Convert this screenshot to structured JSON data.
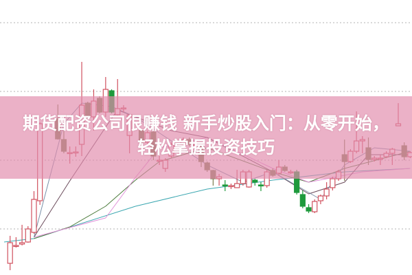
{
  "headline": {
    "line1": "期货配资公司很赚钱 新手炒股入门：从零开始，",
    "line2": "轻松掌握投资技巧"
  },
  "colors": {
    "up": "#d0505e",
    "down": "#7d7d4e",
    "down_strong": "#1e9a3c",
    "grid": "#b0b0b0",
    "banner": "#e28cac"
  },
  "chart_data": {
    "type": "candlestick",
    "title": "",
    "xlabel": "",
    "ylabel": "",
    "ylim": [
      3.3,
      43.3
    ],
    "xlim": [
      0,
      69
    ],
    "grid": true,
    "gridlines_y": [
      10,
      20,
      30,
      40
    ],
    "candles": [
      {
        "i": 1,
        "o": 5.0,
        "h": 9.0,
        "l": 4.0,
        "c": 8.0
      },
      {
        "i": 2,
        "o": 7.5,
        "h": 8.8,
        "l": 7.3,
        "c": 7.6
      },
      {
        "i": 3,
        "o": 7.8,
        "h": 10.6,
        "l": 7.6,
        "c": 8.0
      },
      {
        "i": 4,
        "o": 8.1,
        "h": 10.4,
        "l": 8.0,
        "c": 10.0
      },
      {
        "i": 5,
        "o": 9.5,
        "h": 15.5,
        "l": 9.3,
        "c": 14.3
      },
      {
        "i": 6,
        "o": 14.1,
        "h": 25.5,
        "l": 13.5,
        "c": 25.3
      },
      {
        "i": 9,
        "o": 26.0,
        "h": 28.1,
        "l": 23.0,
        "c": 23.1
      },
      {
        "i": 10,
        "o": 23.0,
        "h": 24.3,
        "l": 21.0,
        "c": 21.3
      },
      {
        "i": 11,
        "o": 21.1,
        "h": 22.0,
        "l": 19.5,
        "c": 21.1
      },
      {
        "i": 12,
        "o": 21.1,
        "h": 22.0,
        "l": 20.5,
        "c": 21.2
      },
      {
        "i": 13,
        "o": 22.3,
        "h": 34.3,
        "l": 20.6,
        "c": 28.0
      },
      {
        "i": 14,
        "o": 28.3,
        "h": 28.5,
        "l": 26.0,
        "c": 26.3
      },
      {
        "i": 15,
        "o": 26.3,
        "h": 30.3,
        "l": 24.3,
        "c": 28.6
      },
      {
        "i": 16,
        "o": 29.0,
        "h": 29.3,
        "l": 26.8,
        "c": 27.0
      },
      {
        "i": 17,
        "o": 27.0,
        "h": 32.1,
        "l": 26.3,
        "c": 30.3
      },
      {
        "i": 18,
        "o": 30.1,
        "h": 30.3,
        "l": 26.8,
        "c": 27.0,
        "strong": true
      },
      {
        "i": 19,
        "o": 26.6,
        "h": 31.8,
        "l": 26.3,
        "c": 27.5
      },
      {
        "i": 20,
        "o": 27.6,
        "h": 28.0,
        "l": 27.0,
        "c": 27.6
      },
      {
        "i": 21,
        "o": 23.6,
        "h": 26.6,
        "l": 21.0,
        "c": 26.6
      },
      {
        "i": 23,
        "o": 24.3,
        "h": 24.6,
        "l": 22.3,
        "c": 22.6
      },
      {
        "i": 24,
        "o": 22.6,
        "h": 24.3,
        "l": 22.3,
        "c": 24.0
      },
      {
        "i": 25,
        "o": 24.1,
        "h": 24.3,
        "l": 20.0,
        "c": 20.6
      },
      {
        "i": 26,
        "o": 20.0,
        "h": 20.6,
        "l": 19.3,
        "c": 20.0
      },
      {
        "i": 27,
        "o": 18.8,
        "h": 20.3,
        "l": 18.3,
        "c": 20.0
      },
      {
        "i": 28,
        "o": 20.6,
        "h": 22.6,
        "l": 20.3,
        "c": 22.3
      },
      {
        "i": 30,
        "o": 22.3,
        "h": 23.3,
        "l": 22.0,
        "c": 23.0
      },
      {
        "i": 31,
        "o": 23.0,
        "h": 23.3,
        "l": 22.0,
        "c": 22.3
      },
      {
        "i": 32,
        "o": 22.3,
        "h": 22.6,
        "l": 22.0,
        "c": 22.3
      },
      {
        "i": 33,
        "o": 22.0,
        "h": 22.3,
        "l": 19.0,
        "c": 19.8
      },
      {
        "i": 34,
        "o": 19.6,
        "h": 19.8,
        "l": 18.3,
        "c": 18.6
      },
      {
        "i": 35,
        "o": 18.5,
        "h": 18.6,
        "l": 16.3,
        "c": 17.3
      },
      {
        "i": 36,
        "o": 17.3,
        "h": 18.0,
        "l": 16.3,
        "c": 17.6
      },
      {
        "i": 37,
        "o": 16.4,
        "h": 17.1,
        "l": 15.5,
        "c": 16.3,
        "strong": true
      },
      {
        "i": 38,
        "o": 16.3,
        "h": 16.6,
        "l": 15.8,
        "c": 16.3
      },
      {
        "i": 39,
        "o": 16.0,
        "h": 18.6,
        "l": 16.0,
        "c": 16.6
      },
      {
        "i": 40,
        "o": 16.6,
        "h": 18.6,
        "l": 16.3,
        "c": 18.3
      },
      {
        "i": 41,
        "o": 16.1,
        "h": 18.6,
        "l": 16.0,
        "c": 18.3
      },
      {
        "i": 42,
        "o": 17.1,
        "h": 17.3,
        "l": 16.3,
        "c": 16.8,
        "strong": true
      },
      {
        "i": 43,
        "o": 16.4,
        "h": 16.8,
        "l": 15.5,
        "c": 16.3,
        "strong": true
      },
      {
        "i": 44,
        "o": 16.3,
        "h": 18.6,
        "l": 16.0,
        "c": 18.3
      },
      {
        "i": 45,
        "o": 18.5,
        "h": 18.8,
        "l": 17.6,
        "c": 17.8
      },
      {
        "i": 46,
        "o": 18.1,
        "h": 20.0,
        "l": 17.8,
        "c": 19.0
      },
      {
        "i": 47,
        "o": 19.0,
        "h": 19.3,
        "l": 18.3,
        "c": 18.5
      },
      {
        "i": 48,
        "o": 18.3,
        "h": 18.6,
        "l": 18.0,
        "c": 18.3
      },
      {
        "i": 49,
        "o": 18.3,
        "h": 18.6,
        "l": 15.0,
        "c": 15.3,
        "strong": true
      },
      {
        "i": 50,
        "o": 15.0,
        "h": 15.6,
        "l": 13.0,
        "c": 13.3,
        "strong": true
      },
      {
        "i": 51,
        "o": 13.1,
        "h": 13.6,
        "l": 12.3,
        "c": 12.6,
        "strong": true
      },
      {
        "i": 52,
        "o": 12.5,
        "h": 14.3,
        "l": 12.3,
        "c": 14.0
      },
      {
        "i": 53,
        "o": 14.1,
        "h": 15.0,
        "l": 13.6,
        "c": 14.8
      },
      {
        "i": 54,
        "o": 14.8,
        "h": 16.8,
        "l": 14.3,
        "c": 15.8
      },
      {
        "i": 55,
        "o": 16.0,
        "h": 17.6,
        "l": 15.6,
        "c": 17.3
      },
      {
        "i": 56,
        "o": 17.3,
        "h": 18.6,
        "l": 17.0,
        "c": 18.3
      },
      {
        "i": 57,
        "o": 20.8,
        "h": 23.0,
        "l": 17.0,
        "c": 19.8
      },
      {
        "i": 58,
        "o": 19.8,
        "h": 21.6,
        "l": 19.6,
        "c": 21.3
      },
      {
        "i": 59,
        "o": 21.3,
        "h": 27.1,
        "l": 21.0,
        "c": 22.8
      },
      {
        "i": 60,
        "o": 22.8,
        "h": 23.5,
        "l": 21.0,
        "c": 23.0
      },
      {
        "i": 61,
        "o": 21.8,
        "h": 23.3,
        "l": 19.3,
        "c": 20.1
      },
      {
        "i": 62,
        "o": 20.1,
        "h": 20.6,
        "l": 19.8,
        "c": 20.3
      },
      {
        "i": 63,
        "o": 20.3,
        "h": 20.8,
        "l": 19.3,
        "c": 20.3
      },
      {
        "i": 64,
        "o": 20.5,
        "h": 21.3,
        "l": 20.3,
        "c": 21.0
      },
      {
        "i": 65,
        "o": 21.0,
        "h": 21.8,
        "l": 19.3,
        "c": 21.6
      },
      {
        "i": 66,
        "o": 25.0,
        "h": 28.3,
        "l": 25.0,
        "c": 25.3
      },
      {
        "i": 67,
        "o": 22.1,
        "h": 22.6,
        "l": 20.0,
        "c": 20.5
      },
      {
        "i": 68,
        "o": 20.5,
        "h": 21.3,
        "l": 20.3,
        "c": 21.1
      }
    ],
    "moving_averages": [
      {
        "color": "#3aa6b0",
        "points": [
          [
            0,
            8.1
          ],
          [
            5,
            8.6
          ],
          [
            22,
            13.3
          ],
          [
            34,
            15.8
          ],
          [
            45,
            17.1
          ],
          [
            57,
            18.3
          ],
          [
            68,
            18.8
          ]
        ]
      },
      {
        "color": "#4a7a3a",
        "points": [
          [
            5,
            8.6
          ],
          [
            11,
            10.3
          ],
          [
            17,
            13.3
          ],
          [
            22,
            17.1
          ],
          [
            26,
            19.8
          ],
          [
            34,
            21.8
          ],
          [
            45,
            18.3
          ],
          [
            51,
            16.8
          ],
          [
            57,
            18.8
          ],
          [
            68,
            21.3
          ]
        ]
      },
      {
        "color": "#e090d8",
        "points": [
          [
            5,
            8.8
          ],
          [
            17,
            11.6
          ],
          [
            22,
            17.5
          ],
          [
            26,
            21.8
          ],
          [
            34,
            23.3
          ],
          [
            45,
            18.8
          ],
          [
            51,
            16.8
          ],
          [
            60,
            18.3
          ],
          [
            68,
            18.8
          ]
        ]
      },
      {
        "color": "#6a4a5a",
        "points": [
          [
            5,
            8.8
          ],
          [
            11,
            17.0
          ],
          [
            17,
            24.8
          ],
          [
            19,
            27.3
          ],
          [
            28,
            24.3
          ],
          [
            34,
            23.3
          ],
          [
            45,
            18.3
          ],
          [
            51,
            15.1
          ],
          [
            57,
            16.8
          ],
          [
            61,
            20.8
          ],
          [
            68,
            20.8
          ]
        ]
      },
      {
        "color": "#7a90a8",
        "points": [
          [
            5,
            8.8
          ],
          [
            10,
            25.3
          ],
          [
            13,
            28.3
          ],
          [
            18,
            27.8
          ],
          [
            22,
            26.3
          ],
          [
            28,
            22.8
          ],
          [
            34,
            19.3
          ],
          [
            40,
            16.8
          ],
          [
            45,
            18.3
          ],
          [
            50,
            15.8
          ],
          [
            53,
            14.3
          ],
          [
            57,
            19.3
          ],
          [
            62,
            21.8
          ],
          [
            68,
            21.3
          ]
        ]
      }
    ]
  }
}
